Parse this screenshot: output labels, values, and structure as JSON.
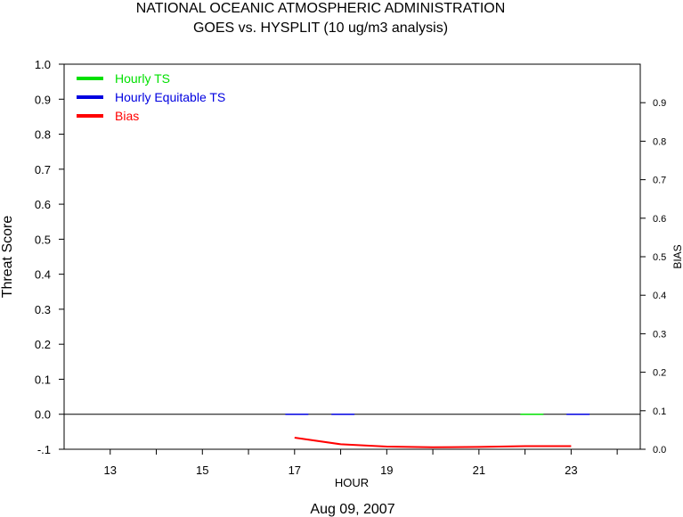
{
  "chart_data": {
    "type": "line",
    "title": "NATIONAL OCEANIC ATMOSPHERIC ADMINISTRATION",
    "subtitle": "GOES vs. HYSPLIT  (10 ug/m3 analysis)",
    "xlabel": "HOUR",
    "ylabel": "Threat Score",
    "y2label": "BIAS",
    "date_label": "Aug 09, 2007",
    "xlim": [
      12,
      24.5
    ],
    "ylim": [
      -0.1,
      1.0
    ],
    "y2lim": [
      0.0,
      1.0
    ],
    "x_ticks": [
      13,
      14,
      15,
      16,
      17,
      18,
      19,
      20,
      21,
      22,
      23,
      24
    ],
    "x_tick_labels": [
      "13",
      "15",
      "17",
      "19",
      "21",
      "23"
    ],
    "y_ticks": [
      "-.1",
      "0.0",
      "0.1",
      "0.2",
      "0.3",
      "0.4",
      "0.5",
      "0.6",
      "0.7",
      "0.8",
      "0.9",
      "1.0"
    ],
    "y2_ticks": [
      "0.0",
      "0.1",
      "0.2",
      "0.3",
      "0.4",
      "0.5",
      "0.6",
      "0.7",
      "0.8",
      "0.9"
    ],
    "legend_position": "top-left",
    "series": [
      {
        "name": "Hourly TS",
        "color": "#00e000",
        "axis": "left",
        "points": [
          [
            21.9,
            0.0
          ],
          [
            22.4,
            0.0
          ]
        ]
      },
      {
        "name": "Hourly Equitable TS",
        "color": "#0000e0",
        "axis": "left",
        "points": [
          [
            16.8,
            0.0
          ],
          [
            17.3,
            0.0
          ],
          [
            17.8,
            0.0
          ],
          [
            18.3,
            0.0
          ],
          [
            22.9,
            0.0
          ],
          [
            23.4,
            0.0
          ]
        ]
      },
      {
        "name": "Bias",
        "color": "#ff0000",
        "axis": "right",
        "points": [
          [
            17,
            0.03
          ],
          [
            18,
            0.013
          ],
          [
            19,
            0.007
          ],
          [
            20,
            0.005
          ],
          [
            21,
            0.006
          ],
          [
            22,
            0.008
          ],
          [
            23,
            0.008
          ]
        ]
      }
    ],
    "zero_line_color": "#000000"
  }
}
